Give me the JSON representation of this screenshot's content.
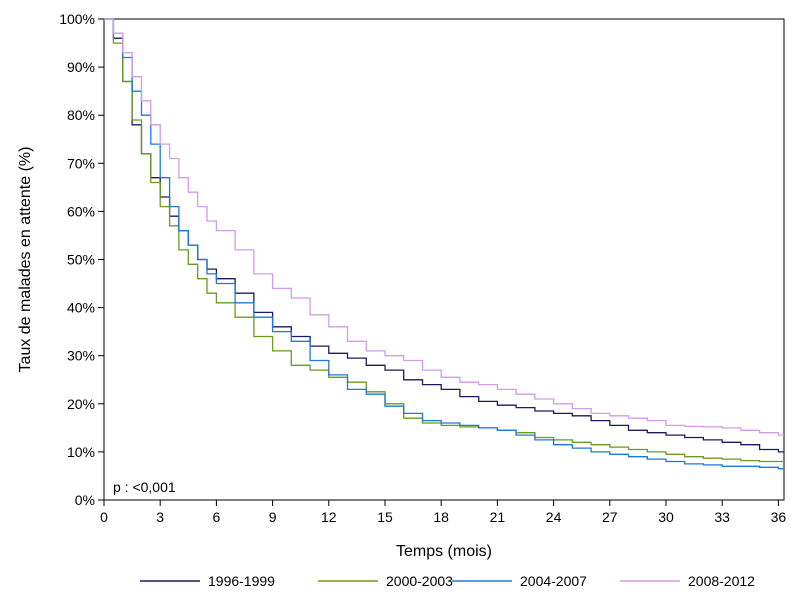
{
  "chart_data": {
    "type": "line",
    "xlabel": "Temps (mois)",
    "ylabel": "Taux de malades en attente (%)",
    "xlim": [
      0,
      36.3
    ],
    "ylim": [
      0,
      100
    ],
    "x_ticks": [
      0,
      3,
      6,
      9,
      12,
      15,
      18,
      21,
      24,
      27,
      30,
      33,
      36
    ],
    "y_ticks": [
      0,
      10,
      20,
      30,
      40,
      50,
      60,
      70,
      80,
      90,
      100
    ],
    "y_tick_labels": [
      "0%",
      "10%",
      "20%",
      "30%",
      "40%",
      "50%",
      "60%",
      "70%",
      "80%",
      "90%",
      "100%"
    ],
    "annotation": "p : <0,001",
    "legend_position": "bottom",
    "grid": false,
    "series": [
      {
        "name": "1996-1999",
        "color": "#1a1a5e",
        "points": [
          [
            0,
            100
          ],
          [
            0.5,
            96
          ],
          [
            1,
            87
          ],
          [
            1.5,
            78
          ],
          [
            2,
            72
          ],
          [
            2.5,
            67
          ],
          [
            3,
            63
          ],
          [
            3.5,
            59
          ],
          [
            4,
            56
          ],
          [
            4.5,
            53
          ],
          [
            5,
            50
          ],
          [
            5.5,
            48
          ],
          [
            6,
            46
          ],
          [
            7,
            43
          ],
          [
            8,
            39
          ],
          [
            9,
            36
          ],
          [
            10,
            34
          ],
          [
            11,
            32
          ],
          [
            12,
            30.5
          ],
          [
            13,
            29.5
          ],
          [
            14,
            28
          ],
          [
            15,
            27
          ],
          [
            16,
            25
          ],
          [
            17,
            24
          ],
          [
            18,
            23
          ],
          [
            19,
            21.5
          ],
          [
            20,
            20.5
          ],
          [
            21,
            19.7
          ],
          [
            22,
            19.2
          ],
          [
            23,
            18.5
          ],
          [
            24,
            18
          ],
          [
            25,
            17.5
          ],
          [
            26,
            16.5
          ],
          [
            27,
            15.5
          ],
          [
            28,
            14.5
          ],
          [
            29,
            14
          ],
          [
            30,
            13.5
          ],
          [
            31,
            13
          ],
          [
            32,
            12.5
          ],
          [
            33,
            12
          ],
          [
            34,
            11.5
          ],
          [
            35,
            10.5
          ],
          [
            36,
            10
          ],
          [
            36.3,
            10
          ]
        ]
      },
      {
        "name": "2000-2003",
        "color": "#6b9a1f",
        "points": [
          [
            0,
            100
          ],
          [
            0.5,
            95
          ],
          [
            1,
            87
          ],
          [
            1.5,
            79
          ],
          [
            2,
            72
          ],
          [
            2.5,
            66
          ],
          [
            3,
            61
          ],
          [
            3.5,
            57
          ],
          [
            4,
            52
          ],
          [
            4.5,
            49
          ],
          [
            5,
            46
          ],
          [
            5.5,
            43
          ],
          [
            6,
            41
          ],
          [
            7,
            38
          ],
          [
            8,
            34
          ],
          [
            9,
            31
          ],
          [
            10,
            28
          ],
          [
            11,
            27
          ],
          [
            12,
            25.5
          ],
          [
            13,
            24.5
          ],
          [
            14,
            22.5
          ],
          [
            15,
            20
          ],
          [
            16,
            17
          ],
          [
            17,
            16
          ],
          [
            18,
            15.5
          ],
          [
            19,
            15.2
          ],
          [
            20,
            15
          ],
          [
            21,
            14.5
          ],
          [
            22,
            14
          ],
          [
            23,
            13
          ],
          [
            24,
            12.5
          ],
          [
            25,
            12
          ],
          [
            26,
            11.5
          ],
          [
            27,
            11
          ],
          [
            28,
            10.5
          ],
          [
            29,
            10
          ],
          [
            30,
            9.5
          ],
          [
            31,
            9
          ],
          [
            32,
            8.7
          ],
          [
            33,
            8.5
          ],
          [
            34,
            8.2
          ],
          [
            35,
            8
          ],
          [
            36,
            8
          ],
          [
            36.3,
            8
          ]
        ]
      },
      {
        "name": "2004-2007",
        "color": "#1e78d8",
        "points": [
          [
            0,
            100
          ],
          [
            0.5,
            97
          ],
          [
            1,
            92
          ],
          [
            1.5,
            85
          ],
          [
            2,
            80
          ],
          [
            2.5,
            74
          ],
          [
            3,
            67
          ],
          [
            3.5,
            61
          ],
          [
            4,
            56
          ],
          [
            4.5,
            53
          ],
          [
            5,
            50
          ],
          [
            5.5,
            47
          ],
          [
            6,
            45
          ],
          [
            7,
            41
          ],
          [
            8,
            38
          ],
          [
            9,
            35
          ],
          [
            10,
            33
          ],
          [
            11,
            29
          ],
          [
            12,
            26
          ],
          [
            13,
            23
          ],
          [
            14,
            22
          ],
          [
            15,
            19.5
          ],
          [
            16,
            18
          ],
          [
            17,
            16.5
          ],
          [
            18,
            16
          ],
          [
            19,
            15.5
          ],
          [
            20,
            15
          ],
          [
            21,
            14.5
          ],
          [
            22,
            13.5
          ],
          [
            23,
            12.5
          ],
          [
            24,
            11.5
          ],
          [
            25,
            10.8
          ],
          [
            26,
            10
          ],
          [
            27,
            9.5
          ],
          [
            28,
            9
          ],
          [
            29,
            8.5
          ],
          [
            30,
            8
          ],
          [
            31,
            7.5
          ],
          [
            32,
            7.3
          ],
          [
            33,
            7
          ],
          [
            34,
            7
          ],
          [
            35,
            6.8
          ],
          [
            36,
            6.5
          ],
          [
            36.3,
            6.5
          ]
        ]
      },
      {
        "name": "2008-2012",
        "color": "#d39be8",
        "points": [
          [
            0,
            100
          ],
          [
            0.5,
            97
          ],
          [
            1,
            93
          ],
          [
            1.5,
            88
          ],
          [
            2,
            83
          ],
          [
            2.5,
            78
          ],
          [
            3,
            74
          ],
          [
            3.5,
            71
          ],
          [
            4,
            67
          ],
          [
            4.5,
            64
          ],
          [
            5,
            61
          ],
          [
            5.5,
            58
          ],
          [
            6,
            56
          ],
          [
            7,
            52
          ],
          [
            8,
            47
          ],
          [
            9,
            44
          ],
          [
            10,
            42
          ],
          [
            11,
            38.5
          ],
          [
            12,
            36
          ],
          [
            13,
            33
          ],
          [
            14,
            31
          ],
          [
            15,
            30
          ],
          [
            16,
            29
          ],
          [
            17,
            27
          ],
          [
            18,
            25.5
          ],
          [
            19,
            24.5
          ],
          [
            20,
            24
          ],
          [
            21,
            23
          ],
          [
            22,
            22
          ],
          [
            23,
            21
          ],
          [
            24,
            20
          ],
          [
            25,
            19
          ],
          [
            26,
            18
          ],
          [
            27,
            17.5
          ],
          [
            28,
            17
          ],
          [
            29,
            16.5
          ],
          [
            30,
            15.5
          ],
          [
            31,
            15.3
          ],
          [
            32,
            15.2
          ],
          [
            33,
            15
          ],
          [
            34,
            14.5
          ],
          [
            35,
            14
          ],
          [
            36,
            13.5
          ],
          [
            36.3,
            13.5
          ]
        ]
      }
    ]
  }
}
